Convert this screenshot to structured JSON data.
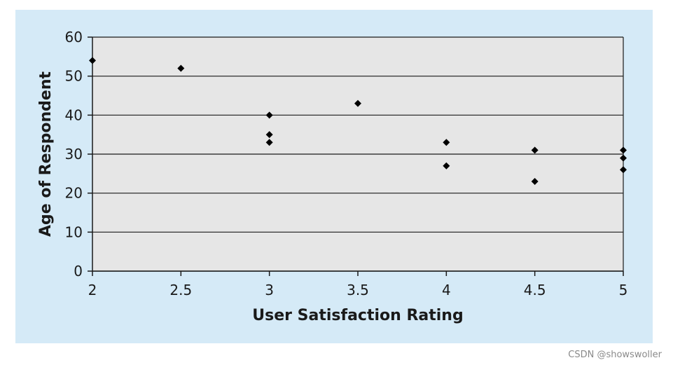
{
  "colors": {
    "page_background": "#ffffff",
    "panel_background": "#d5eaf7",
    "plot_background": "#e6e6e6",
    "gridline": "#1a1a1a",
    "axis": "#1a1a1a",
    "marker": "#000000",
    "watermark": "#8a8a8a"
  },
  "watermark": "CSDN @showswoller",
  "chart_data": {
    "type": "scatter",
    "title": "",
    "xlabel": "User Satisfaction Rating",
    "ylabel": "Age of Respondent",
    "xlim": [
      2,
      5
    ],
    "ylim": [
      0,
      60
    ],
    "x_ticks": [
      "2",
      "2.5",
      "3",
      "3.5",
      "4",
      "4.5",
      "5"
    ],
    "y_ticks": [
      "0",
      "10",
      "20",
      "30",
      "40",
      "50",
      "60"
    ],
    "grid": "horizontal",
    "marker": "diamond",
    "points": [
      {
        "x": 2,
        "y": 54
      },
      {
        "x": 2.5,
        "y": 52
      },
      {
        "x": 3,
        "y": 40
      },
      {
        "x": 3,
        "y": 35
      },
      {
        "x": 3,
        "y": 33
      },
      {
        "x": 3.5,
        "y": 43
      },
      {
        "x": 4,
        "y": 33
      },
      {
        "x": 4,
        "y": 27
      },
      {
        "x": 4.5,
        "y": 31
      },
      {
        "x": 4.5,
        "y": 23
      },
      {
        "x": 5,
        "y": 31
      },
      {
        "x": 5,
        "y": 29
      },
      {
        "x": 5,
        "y": 26
      }
    ]
  }
}
